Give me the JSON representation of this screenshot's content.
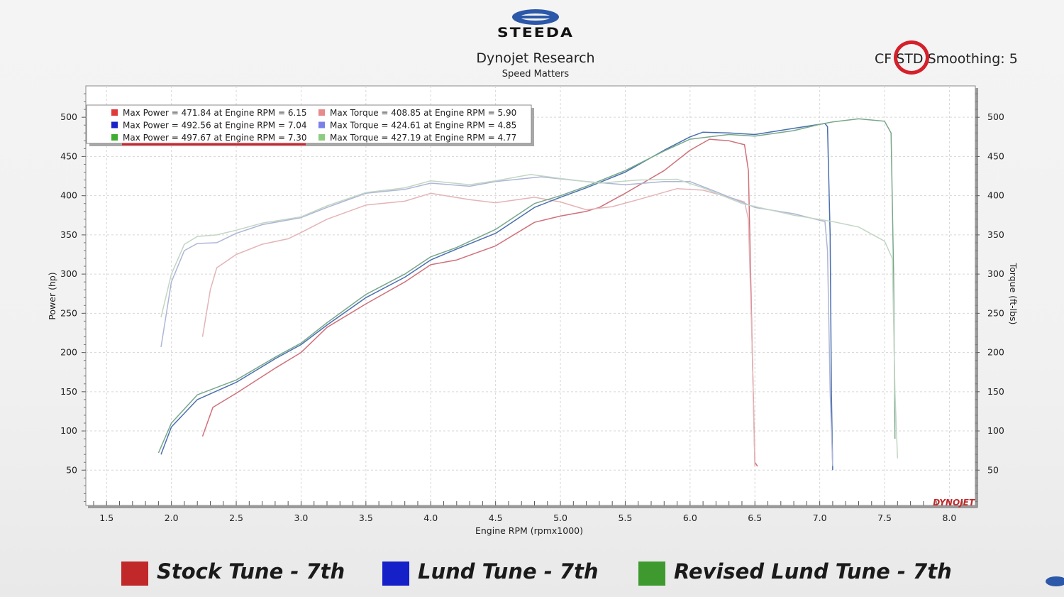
{
  "header": {
    "logo_text": "STEEDA",
    "title": "Dynojet Research",
    "subtitle": "Speed Matters",
    "cf_prefix": "CF",
    "cf_value": "STD",
    "smoothing": "Smoothing: 5",
    "watermark": "DYNOJET"
  },
  "colors": {
    "stock": "#c0282a",
    "lund": "#1520c8",
    "revised": "#3e9a2e",
    "annotation": "#d4202a"
  },
  "footer": {
    "items": [
      {
        "label": "Stock Tune - 7th",
        "color": "#c0282a"
      },
      {
        "label": "Lund Tune - 7th",
        "color": "#1520c8"
      },
      {
        "label": "Revised Lund Tune - 7th",
        "color": "#3e9a2e"
      }
    ]
  },
  "chart_data": {
    "type": "line",
    "xlabel": "Engine RPM (rpmx1000)",
    "ylabel": "Power (hp)",
    "y2label": "Torque (ft-lbs)",
    "xlim": [
      1.34,
      8.2
    ],
    "ylim": [
      5,
      540
    ],
    "x_ticks": [
      "1.5",
      "2.0",
      "2.5",
      "3.0",
      "3.5",
      "4.0",
      "4.5",
      "5.0",
      "5.5",
      "6.0",
      "6.5",
      "7.0",
      "7.5",
      "8.0"
    ],
    "y_ticks": [
      "50",
      "100",
      "150",
      "200",
      "250",
      "300",
      "350",
      "400",
      "450",
      "500"
    ],
    "grid": true,
    "legend_position": "top-left",
    "legend": [
      {
        "text": "Max Power = 471.84 at Engine RPM = 6.15",
        "color": "#e03a3a"
      },
      {
        "text": "Max Power = 492.56 at Engine RPM = 7.04",
        "color": "#1a22c8"
      },
      {
        "text": "Max Power = 497.67 at Engine RPM = 7.30",
        "color": "#3fae30"
      },
      {
        "text": "Max Torque = 408.85 at Engine RPM = 5.90",
        "color": "#e68a8a"
      },
      {
        "text": "Max Torque = 424.61 at Engine RPM = 4.85",
        "color": "#7a80e8"
      },
      {
        "text": "Max Torque = 427.19 at Engine RPM = 4.77",
        "color": "#8ccc80"
      }
    ],
    "series": [
      {
        "name": "Stock Tune - 7th",
        "kind": "power",
        "color": "#d0707a",
        "points": [
          [
            2.24,
            93
          ],
          [
            2.32,
            130
          ],
          [
            2.5,
            148
          ],
          [
            2.8,
            180
          ],
          [
            3.0,
            200
          ],
          [
            3.2,
            232
          ],
          [
            3.5,
            262
          ],
          [
            3.8,
            290
          ],
          [
            4.0,
            312
          ],
          [
            4.2,
            318
          ],
          [
            4.5,
            336
          ],
          [
            4.8,
            366
          ],
          [
            5.0,
            374
          ],
          [
            5.2,
            380
          ],
          [
            5.3,
            385
          ],
          [
            5.5,
            403
          ],
          [
            5.8,
            432
          ],
          [
            6.0,
            458
          ],
          [
            6.15,
            472
          ],
          [
            6.3,
            470
          ],
          [
            6.42,
            465
          ],
          [
            6.45,
            432
          ],
          [
            6.48,
            200
          ],
          [
            6.5,
            60
          ],
          [
            6.52,
            55
          ]
        ]
      },
      {
        "name": "Stock Tune - 7th",
        "kind": "torque",
        "color": "#e3b4b8",
        "points": [
          [
            2.24,
            220
          ],
          [
            2.3,
            280
          ],
          [
            2.35,
            308
          ],
          [
            2.5,
            325
          ],
          [
            2.7,
            338
          ],
          [
            2.9,
            345
          ],
          [
            3.0,
            353
          ],
          [
            3.2,
            370
          ],
          [
            3.5,
            388
          ],
          [
            3.8,
            393
          ],
          [
            4.0,
            403
          ],
          [
            4.3,
            395
          ],
          [
            4.5,
            391
          ],
          [
            4.8,
            398
          ],
          [
            5.0,
            392
          ],
          [
            5.2,
            382
          ],
          [
            5.4,
            386
          ],
          [
            5.6,
            395
          ],
          [
            5.9,
            409
          ],
          [
            6.1,
            407
          ],
          [
            6.3,
            398
          ],
          [
            6.42,
            392
          ],
          [
            6.45,
            370
          ],
          [
            6.48,
            200
          ],
          [
            6.5,
            55
          ]
        ]
      },
      {
        "name": "Lund Tune - 7th",
        "kind": "power",
        "color": "#4a6fb0",
        "points": [
          [
            1.92,
            70
          ],
          [
            2.0,
            105
          ],
          [
            2.2,
            140
          ],
          [
            2.5,
            162
          ],
          [
            2.8,
            192
          ],
          [
            3.0,
            210
          ],
          [
            3.2,
            235
          ],
          [
            3.5,
            270
          ],
          [
            3.8,
            296
          ],
          [
            4.0,
            318
          ],
          [
            4.2,
            332
          ],
          [
            4.5,
            352
          ],
          [
            4.8,
            385
          ],
          [
            5.0,
            398
          ],
          [
            5.2,
            410
          ],
          [
            5.5,
            430
          ],
          [
            5.8,
            458
          ],
          [
            6.0,
            475
          ],
          [
            6.1,
            481
          ],
          [
            6.3,
            480
          ],
          [
            6.5,
            478
          ],
          [
            6.8,
            486
          ],
          [
            7.04,
            492
          ],
          [
            7.06,
            488
          ],
          [
            7.08,
            350
          ],
          [
            7.09,
            150
          ],
          [
            7.1,
            50
          ]
        ]
      },
      {
        "name": "Lund Tune - 7th",
        "kind": "torque",
        "color": "#aeb6d6",
        "points": [
          [
            1.92,
            207
          ],
          [
            2.0,
            290
          ],
          [
            2.1,
            330
          ],
          [
            2.2,
            339
          ],
          [
            2.35,
            340
          ],
          [
            2.5,
            352
          ],
          [
            2.7,
            363
          ],
          [
            3.0,
            372
          ],
          [
            3.2,
            385
          ],
          [
            3.5,
            403
          ],
          [
            3.8,
            408
          ],
          [
            4.0,
            416
          ],
          [
            4.3,
            412
          ],
          [
            4.5,
            418
          ],
          [
            4.85,
            424
          ],
          [
            5.2,
            418
          ],
          [
            5.5,
            414
          ],
          [
            5.8,
            418
          ],
          [
            6.0,
            418
          ],
          [
            6.2,
            405
          ],
          [
            6.5,
            385
          ],
          [
            6.8,
            377
          ],
          [
            7.04,
            367
          ],
          [
            7.06,
            330
          ],
          [
            7.08,
            150
          ],
          [
            7.1,
            55
          ]
        ]
      },
      {
        "name": "Revised Lund Tune - 7th",
        "kind": "power",
        "color": "#78a88a",
        "points": [
          [
            1.9,
            72
          ],
          [
            2.0,
            110
          ],
          [
            2.2,
            146
          ],
          [
            2.5,
            165
          ],
          [
            2.8,
            194
          ],
          [
            3.0,
            212
          ],
          [
            3.2,
            238
          ],
          [
            3.5,
            274
          ],
          [
            3.8,
            300
          ],
          [
            4.0,
            322
          ],
          [
            4.2,
            334
          ],
          [
            4.5,
            357
          ],
          [
            4.8,
            390
          ],
          [
            5.0,
            400
          ],
          [
            5.2,
            412
          ],
          [
            5.5,
            432
          ],
          [
            5.8,
            457
          ],
          [
            6.0,
            472
          ],
          [
            6.3,
            478
          ],
          [
            6.5,
            476
          ],
          [
            6.8,
            483
          ],
          [
            7.0,
            491
          ],
          [
            7.1,
            494
          ],
          [
            7.3,
            498
          ],
          [
            7.5,
            495
          ],
          [
            7.55,
            480
          ],
          [
            7.57,
            300
          ],
          [
            7.58,
            90
          ]
        ]
      },
      {
        "name": "Revised Lund Tune - 7th",
        "kind": "torque",
        "color": "#c2d6c4",
        "points": [
          [
            1.92,
            245
          ],
          [
            2.0,
            300
          ],
          [
            2.1,
            338
          ],
          [
            2.2,
            348
          ],
          [
            2.35,
            350
          ],
          [
            2.5,
            356
          ],
          [
            2.7,
            365
          ],
          [
            3.0,
            373
          ],
          [
            3.2,
            387
          ],
          [
            3.5,
            404
          ],
          [
            3.8,
            410
          ],
          [
            4.0,
            419
          ],
          [
            4.3,
            414
          ],
          [
            4.5,
            419
          ],
          [
            4.77,
            427
          ],
          [
            5.0,
            422
          ],
          [
            5.3,
            416
          ],
          [
            5.6,
            420
          ],
          [
            5.9,
            421
          ],
          [
            6.1,
            410
          ],
          [
            6.4,
            390
          ],
          [
            6.8,
            375
          ],
          [
            7.1,
            367
          ],
          [
            7.3,
            360
          ],
          [
            7.5,
            342
          ],
          [
            7.56,
            320
          ],
          [
            7.58,
            150
          ],
          [
            7.6,
            65
          ]
        ]
      }
    ]
  }
}
